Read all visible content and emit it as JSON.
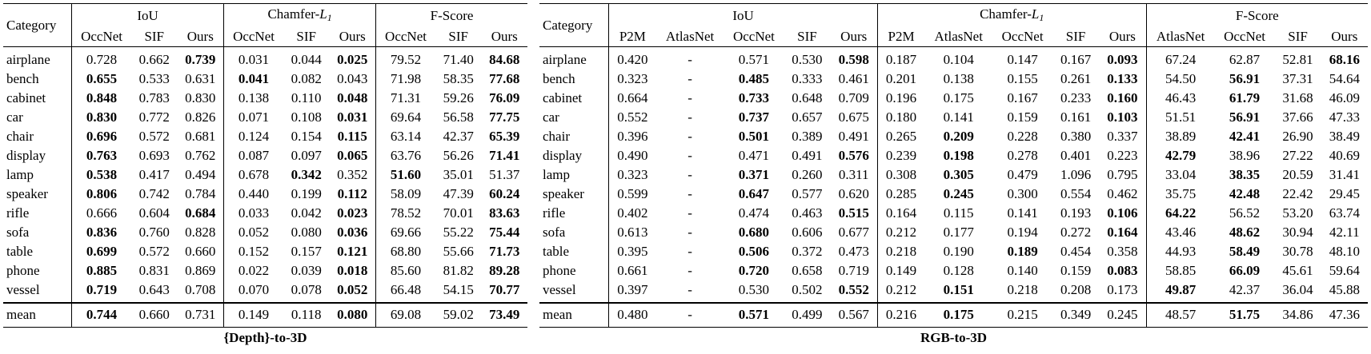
{
  "left": {
    "caption": "{Depth}-to-3D",
    "category_header": "Category",
    "groups": [
      {
        "name": "IoU",
        "cols": [
          "OccNet",
          "SIF",
          "Ours"
        ]
      },
      {
        "name": "Chamfer-L1",
        "cols": [
          "OccNet",
          "SIF",
          "Ours"
        ]
      },
      {
        "name": "F-Score",
        "cols": [
          "OccNet",
          "SIF",
          "Ours"
        ]
      }
    ],
    "rows": [
      {
        "cat": "airplane",
        "vals": [
          "0.728",
          "0.662",
          "0.739",
          "0.031",
          "0.044",
          "0.025",
          "79.52",
          "71.40",
          "84.68"
        ],
        "bold": [
          2,
          5,
          8
        ]
      },
      {
        "cat": "bench",
        "vals": [
          "0.655",
          "0.533",
          "0.631",
          "0.041",
          "0.082",
          "0.043",
          "71.98",
          "58.35",
          "77.68"
        ],
        "bold": [
          0,
          3,
          8
        ]
      },
      {
        "cat": "cabinet",
        "vals": [
          "0.848",
          "0.783",
          "0.830",
          "0.138",
          "0.110",
          "0.048",
          "71.31",
          "59.26",
          "76.09"
        ],
        "bold": [
          0,
          5,
          8
        ]
      },
      {
        "cat": "car",
        "vals": [
          "0.830",
          "0.772",
          "0.826",
          "0.071",
          "0.108",
          "0.031",
          "69.64",
          "56.58",
          "77.75"
        ],
        "bold": [
          0,
          5,
          8
        ]
      },
      {
        "cat": "chair",
        "vals": [
          "0.696",
          "0.572",
          "0.681",
          "0.124",
          "0.154",
          "0.115",
          "63.14",
          "42.37",
          "65.39"
        ],
        "bold": [
          0,
          5,
          8
        ]
      },
      {
        "cat": "display",
        "vals": [
          "0.763",
          "0.693",
          "0.762",
          "0.087",
          "0.097",
          "0.065",
          "63.76",
          "56.26",
          "71.41"
        ],
        "bold": [
          0,
          5,
          8
        ]
      },
      {
        "cat": "lamp",
        "vals": [
          "0.538",
          "0.417",
          "0.494",
          "0.678",
          "0.342",
          "0.352",
          "51.60",
          "35.01",
          "51.37"
        ],
        "bold": [
          0,
          4,
          6
        ]
      },
      {
        "cat": "speaker",
        "vals": [
          "0.806",
          "0.742",
          "0.784",
          "0.440",
          "0.199",
          "0.112",
          "58.09",
          "47.39",
          "60.24"
        ],
        "bold": [
          0,
          5,
          8
        ]
      },
      {
        "cat": "rifle",
        "vals": [
          "0.666",
          "0.604",
          "0.684",
          "0.033",
          "0.042",
          "0.023",
          "78.52",
          "70.01",
          "83.63"
        ],
        "bold": [
          2,
          5,
          8
        ]
      },
      {
        "cat": "sofa",
        "vals": [
          "0.836",
          "0.760",
          "0.828",
          "0.052",
          "0.080",
          "0.036",
          "69.66",
          "55.22",
          "75.44"
        ],
        "bold": [
          0,
          5,
          8
        ]
      },
      {
        "cat": "table",
        "vals": [
          "0.699",
          "0.572",
          "0.660",
          "0.152",
          "0.157",
          "0.121",
          "68.80",
          "55.66",
          "71.73"
        ],
        "bold": [
          0,
          5,
          8
        ]
      },
      {
        "cat": "phone",
        "vals": [
          "0.885",
          "0.831",
          "0.869",
          "0.022",
          "0.039",
          "0.018",
          "85.60",
          "81.82",
          "89.28"
        ],
        "bold": [
          0,
          5,
          8
        ]
      },
      {
        "cat": "vessel",
        "vals": [
          "0.719",
          "0.643",
          "0.708",
          "0.070",
          "0.078",
          "0.052",
          "66.48",
          "54.15",
          "70.77"
        ],
        "bold": [
          0,
          5,
          8
        ]
      }
    ],
    "mean": {
      "cat": "mean",
      "vals": [
        "0.744",
        "0.660",
        "0.731",
        "0.149",
        "0.118",
        "0.080",
        "69.08",
        "59.02",
        "73.49"
      ],
      "bold": [
        0,
        5,
        8
      ]
    }
  },
  "right": {
    "caption": "RGB-to-3D",
    "category_header": "Category",
    "groups": [
      {
        "name": "IoU",
        "cols": [
          "P2M",
          "AtlasNet",
          "OccNet",
          "SIF",
          "Ours"
        ]
      },
      {
        "name": "Chamfer-L1",
        "cols": [
          "P2M",
          "AtlasNet",
          "OccNet",
          "SIF",
          "Ours"
        ]
      },
      {
        "name": "F-Score",
        "cols": [
          "AtlasNet",
          "OccNet",
          "SIF",
          "Ours"
        ]
      }
    ],
    "rows": [
      {
        "cat": "airplane",
        "vals": [
          "0.420",
          "-",
          "0.571",
          "0.530",
          "0.598",
          "0.187",
          "0.104",
          "0.147",
          "0.167",
          "0.093",
          "67.24",
          "62.87",
          "52.81",
          "68.16"
        ],
        "bold": [
          4,
          9,
          13
        ]
      },
      {
        "cat": "bench",
        "vals": [
          "0.323",
          "-",
          "0.485",
          "0.333",
          "0.461",
          "0.201",
          "0.138",
          "0.155",
          "0.261",
          "0.133",
          "54.50",
          "56.91",
          "37.31",
          "54.64"
        ],
        "bold": [
          2,
          9,
          11
        ]
      },
      {
        "cat": "cabinet",
        "vals": [
          "0.664",
          "-",
          "0.733",
          "0.648",
          "0.709",
          "0.196",
          "0.175",
          "0.167",
          "0.233",
          "0.160",
          "46.43",
          "61.79",
          "31.68",
          "46.09"
        ],
        "bold": [
          2,
          9,
          11
        ]
      },
      {
        "cat": "car",
        "vals": [
          "0.552",
          "-",
          "0.737",
          "0.657",
          "0.675",
          "0.180",
          "0.141",
          "0.159",
          "0.161",
          "0.103",
          "51.51",
          "56.91",
          "37.66",
          "47.33"
        ],
        "bold": [
          2,
          9,
          11
        ]
      },
      {
        "cat": "chair",
        "vals": [
          "0.396",
          "-",
          "0.501",
          "0.389",
          "0.491",
          "0.265",
          "0.209",
          "0.228",
          "0.380",
          "0.337",
          "38.89",
          "42.41",
          "26.90",
          "38.49"
        ],
        "bold": [
          2,
          6,
          11
        ]
      },
      {
        "cat": "display",
        "vals": [
          "0.490",
          "-",
          "0.471",
          "0.491",
          "0.576",
          "0.239",
          "0.198",
          "0.278",
          "0.401",
          "0.223",
          "42.79",
          "38.96",
          "27.22",
          "40.69"
        ],
        "bold": [
          4,
          6,
          10
        ]
      },
      {
        "cat": "lamp",
        "vals": [
          "0.323",
          "-",
          "0.371",
          "0.260",
          "0.311",
          "0.308",
          "0.305",
          "0.479",
          "1.096",
          "0.795",
          "33.04",
          "38.35",
          "20.59",
          "31.41"
        ],
        "bold": [
          2,
          6,
          11
        ]
      },
      {
        "cat": "speaker",
        "vals": [
          "0.599",
          "-",
          "0.647",
          "0.577",
          "0.620",
          "0.285",
          "0.245",
          "0.300",
          "0.554",
          "0.462",
          "35.75",
          "42.48",
          "22.42",
          "29.45"
        ],
        "bold": [
          2,
          6,
          11
        ]
      },
      {
        "cat": "rifle",
        "vals": [
          "0.402",
          "-",
          "0.474",
          "0.463",
          "0.515",
          "0.164",
          "0.115",
          "0.141",
          "0.193",
          "0.106",
          "64.22",
          "56.52",
          "53.20",
          "63.74"
        ],
        "bold": [
          4,
          9,
          10
        ]
      },
      {
        "cat": "sofa",
        "vals": [
          "0.613",
          "-",
          "0.680",
          "0.606",
          "0.677",
          "0.212",
          "0.177",
          "0.194",
          "0.272",
          "0.164",
          "43.46",
          "48.62",
          "30.94",
          "42.11"
        ],
        "bold": [
          2,
          9,
          11
        ]
      },
      {
        "cat": "table",
        "vals": [
          "0.395",
          "-",
          "0.506",
          "0.372",
          "0.473",
          "0.218",
          "0.190",
          "0.189",
          "0.454",
          "0.358",
          "44.93",
          "58.49",
          "30.78",
          "48.10"
        ],
        "bold": [
          2,
          7,
          11
        ]
      },
      {
        "cat": "phone",
        "vals": [
          "0.661",
          "-",
          "0.720",
          "0.658",
          "0.719",
          "0.149",
          "0.128",
          "0.140",
          "0.159",
          "0.083",
          "58.85",
          "66.09",
          "45.61",
          "59.64"
        ],
        "bold": [
          2,
          9,
          11
        ]
      },
      {
        "cat": "vessel",
        "vals": [
          "0.397",
          "-",
          "0.530",
          "0.502",
          "0.552",
          "0.212",
          "0.151",
          "0.218",
          "0.208",
          "0.173",
          "49.87",
          "42.37",
          "36.04",
          "45.88"
        ],
        "bold": [
          4,
          6,
          10
        ]
      }
    ],
    "mean": {
      "cat": "mean",
      "vals": [
        "0.480",
        "-",
        "0.571",
        "0.499",
        "0.567",
        "0.216",
        "0.175",
        "0.215",
        "0.349",
        "0.245",
        "48.57",
        "51.75",
        "34.86",
        "47.36"
      ],
      "bold": [
        2,
        6,
        11
      ]
    }
  }
}
